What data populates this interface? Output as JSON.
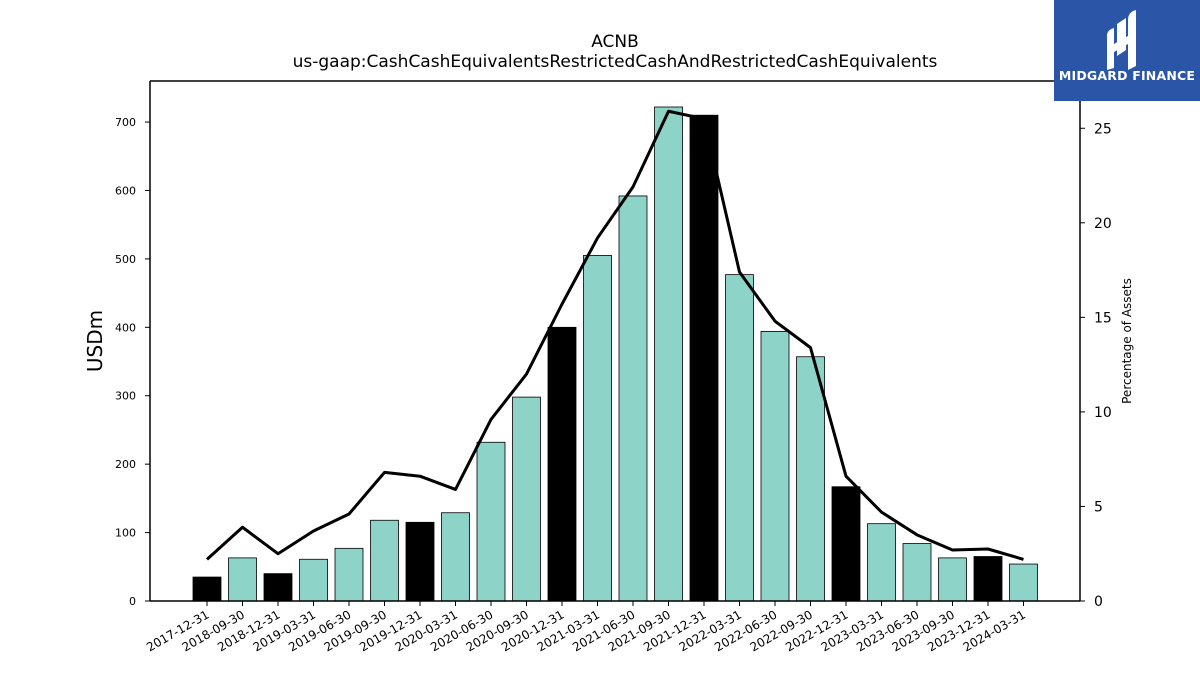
{
  "chart_data": {
    "type": "bar",
    "title": "ACNB",
    "subtitle": "us-gaap:CashCashEquivalentsRestrictedCashAndRestrictedCashEquivalents",
    "ylabel": "USDm",
    "y2label": "Percentage of Assets",
    "ylim": [
      0,
      760
    ],
    "y2lim": [
      0,
      27.5
    ],
    "yticks": [
      0,
      100,
      200,
      300,
      400,
      500,
      600,
      700
    ],
    "y2ticks": [
      0,
      5,
      10,
      15,
      20,
      25
    ],
    "categories": [
      "2017-12-31",
      "2018-09-30",
      "2018-12-31",
      "2019-03-31",
      "2019-06-30",
      "2019-09-30",
      "2019-12-31",
      "2020-03-31",
      "2020-06-30",
      "2020-09-30",
      "2020-12-31",
      "2021-03-31",
      "2021-06-30",
      "2021-09-30",
      "2021-12-31",
      "2022-03-31",
      "2022-06-30",
      "2022-09-30",
      "2022-12-31",
      "2023-03-31",
      "2023-06-30",
      "2023-09-30",
      "2023-12-31",
      "2024-03-31"
    ],
    "series": [
      {
        "type": "bar",
        "values": [
          35,
          63,
          40,
          61,
          77,
          118,
          115,
          129,
          232,
          298,
          400,
          505,
          592,
          722,
          710,
          477,
          394,
          357,
          167,
          113,
          84,
          63,
          65,
          54
        ],
        "colors": [
          "#000000",
          "#8dd3c7",
          "#000000",
          "#8dd3c7",
          "#8dd3c7",
          "#8dd3c7",
          "#000000",
          "#8dd3c7",
          "#8dd3c7",
          "#8dd3c7",
          "#000000",
          "#8dd3c7",
          "#8dd3c7",
          "#8dd3c7",
          "#000000",
          "#8dd3c7",
          "#8dd3c7",
          "#8dd3c7",
          "#000000",
          "#8dd3c7",
          "#8dd3c7",
          "#8dd3c7",
          "#000000",
          "#8dd3c7"
        ]
      },
      {
        "type": "line",
        "axis": "right",
        "values": [
          2.2,
          3.9,
          2.5,
          3.7,
          4.6,
          6.8,
          6.6,
          5.9,
          9.6,
          12.0,
          15.7,
          19.2,
          21.9,
          25.9,
          25.5,
          17.4,
          14.8,
          13.4,
          6.6,
          4.7,
          3.5,
          2.7,
          2.75,
          2.2
        ],
        "color": "#000000"
      }
    ],
    "grid": false,
    "legend": "none"
  },
  "logo": {
    "text": "MIDGARD FINANCE",
    "background": "#2b56a8"
  }
}
